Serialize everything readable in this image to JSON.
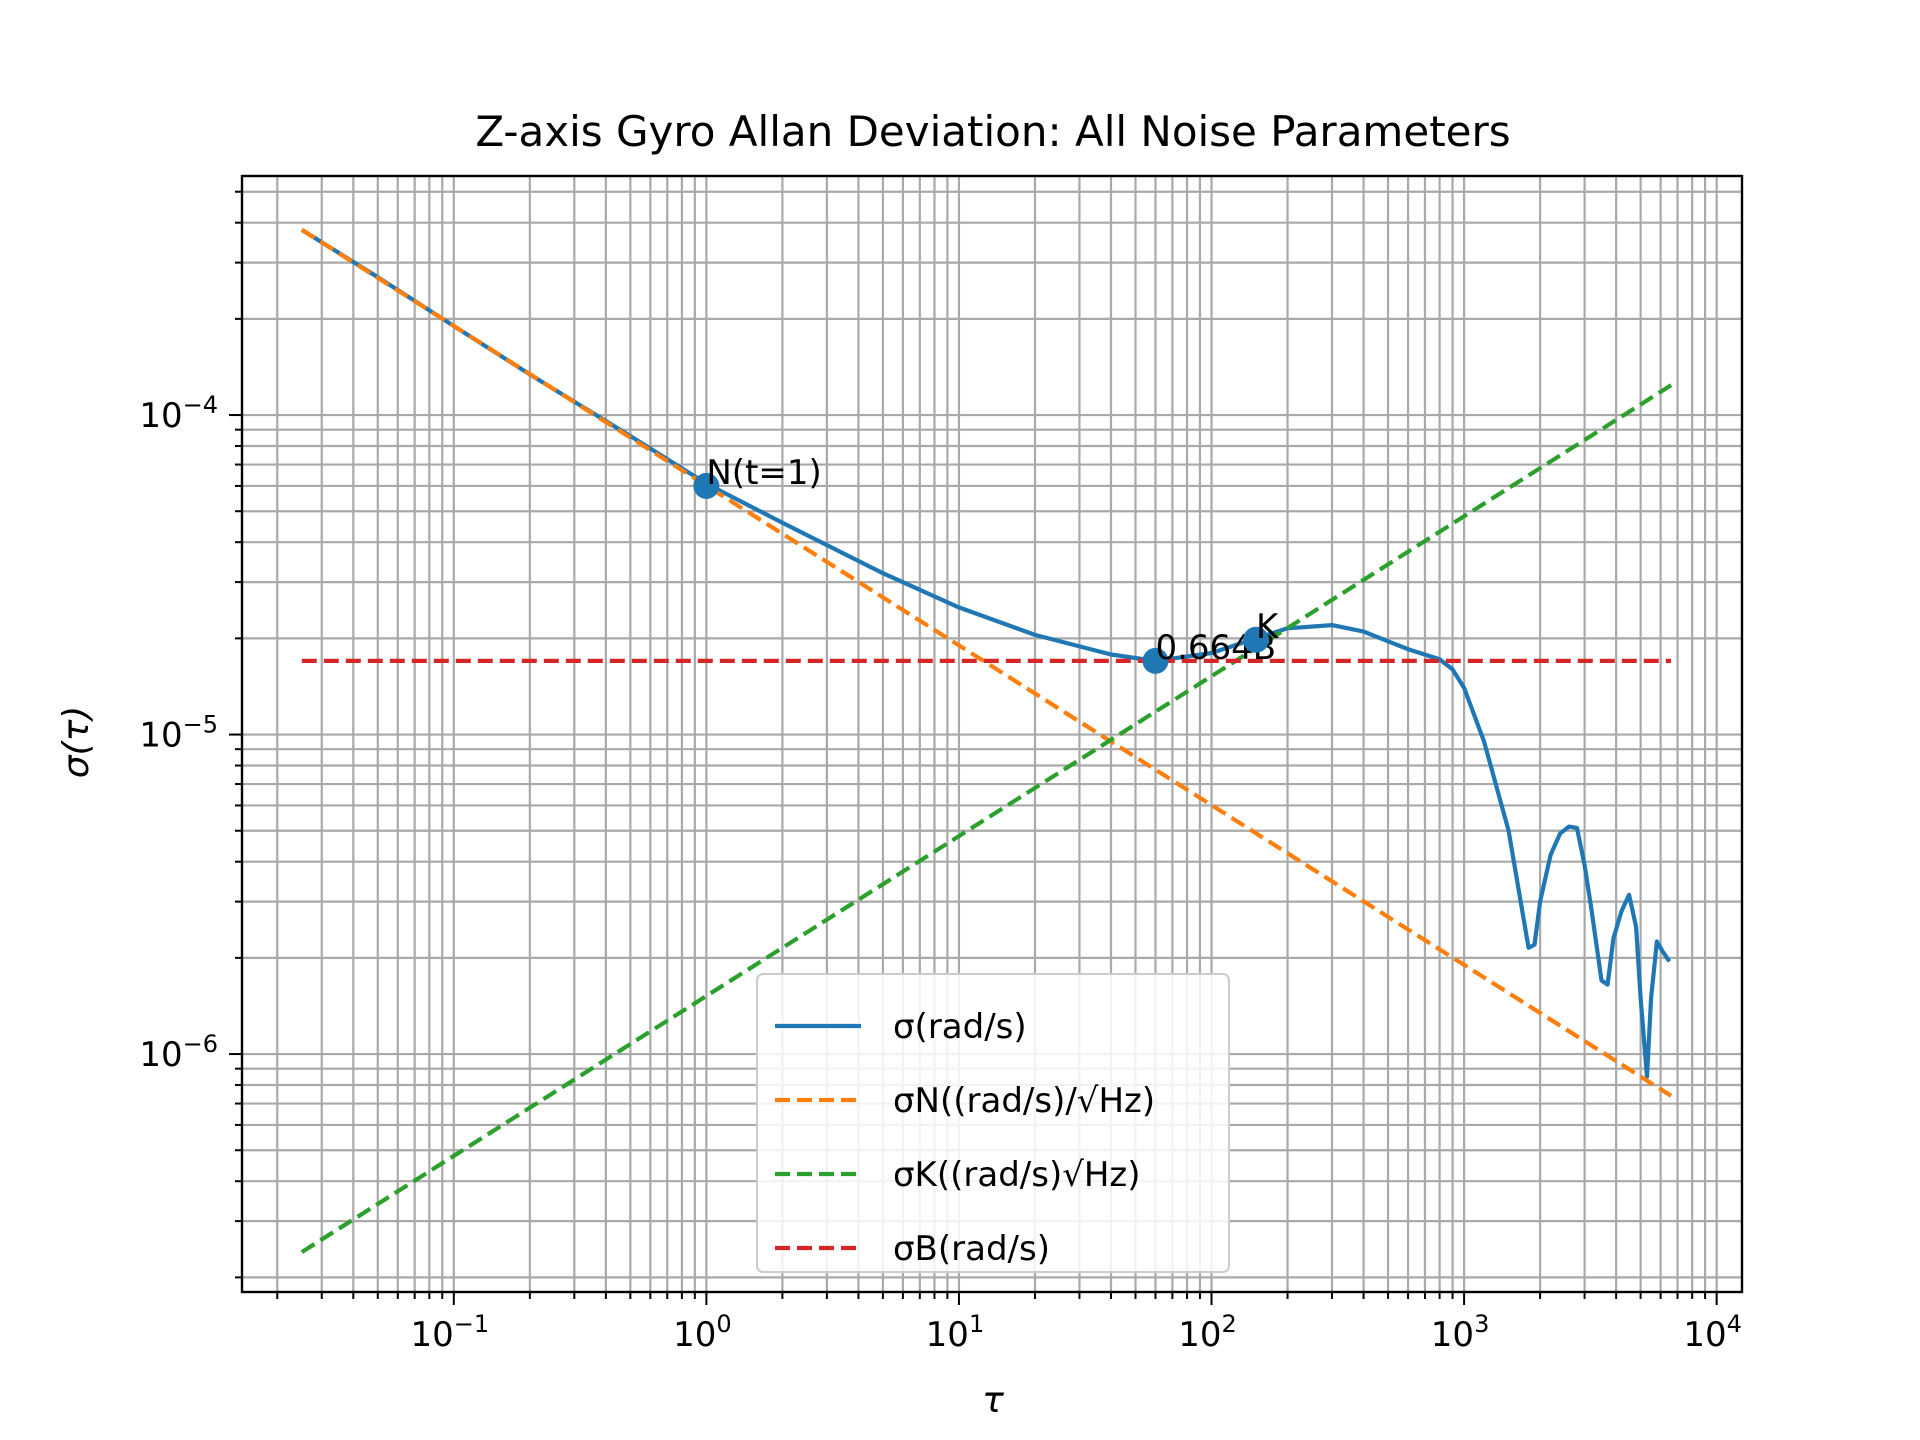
{
  "chart_data": {
    "type": "line",
    "title": "Z-axis Gyro Allan Deviation: All Noise Parameters",
    "xlabel": "τ",
    "ylabel": "σ(τ)",
    "x_scale": "log",
    "y_scale": "log",
    "xlim": [
      0.0145,
      12600
    ],
    "ylim": [
      1.8e-07,
      0.00056
    ],
    "grid": "both major and minor",
    "x_ticks": [
      {
        "value": 0.1,
        "base": "10",
        "exp": "−1"
      },
      {
        "value": 1,
        "base": "10",
        "exp": "0"
      },
      {
        "value": 10,
        "base": "10",
        "exp": "1"
      },
      {
        "value": 100,
        "base": "10",
        "exp": "2"
      },
      {
        "value": 1000,
        "base": "10",
        "exp": "3"
      },
      {
        "value": 10000,
        "base": "10",
        "exp": "4"
      }
    ],
    "y_ticks": [
      {
        "value": 1e-06,
        "base": "10",
        "exp": "−6"
      },
      {
        "value": 1e-05,
        "base": "10",
        "exp": "−5"
      },
      {
        "value": 0.0001,
        "base": "10",
        "exp": "−4"
      }
    ],
    "legend": {
      "position": "lower center",
      "entries": [
        {
          "label": "σ(rad/s)",
          "color": "#1f77b4",
          "style": "solid"
        },
        {
          "label": "σN((rad/s)/√Hz)",
          "color": "#ff7f0e",
          "style": "dashed"
        },
        {
          "label": "σK((rad/s)√Hz)",
          "color": "#2ca02c",
          "style": "dashed"
        },
        {
          "label": "σB(rad/s)",
          "color": "#d62728",
          "style": "dashed"
        }
      ]
    },
    "series": [
      {
        "name": "σ(rad/s)",
        "color": "#1f77b4",
        "style": "solid",
        "x": [
          0.025,
          0.05,
          0.1,
          0.2,
          0.5,
          1,
          2,
          5,
          10,
          20,
          40,
          60,
          100,
          150,
          200,
          300,
          400,
          600,
          800,
          900,
          1000,
          1200,
          1500,
          1700,
          1800,
          1900,
          2000,
          2200,
          2400,
          2600,
          2800,
          3000,
          3200,
          3500,
          3700,
          3900,
          4200,
          4500,
          4800,
          5000,
          5300,
          5500,
          5800,
          6100,
          6500
        ],
        "y": [
          0.00038,
          0.00027,
          0.00019,
          0.000134,
          8.6e-05,
          6.1e-05,
          4.6e-05,
          3.2e-05,
          2.5e-05,
          2.05e-05,
          1.78e-05,
          1.7e-05,
          1.8e-05,
          2e-05,
          2.15e-05,
          2.2e-05,
          2.1e-05,
          1.85e-05,
          1.72e-05,
          1.6e-05,
          1.4e-05,
          9.5e-06,
          5e-06,
          2.8e-06,
          2.15e-06,
          2.2e-06,
          3e-06,
          4.2e-06,
          4.9e-06,
          5.15e-06,
          5.1e-06,
          3.9e-06,
          2.8e-06,
          1.7e-06,
          1.65e-06,
          2.3e-06,
          2.8e-06,
          3.15e-06,
          2.5e-06,
          1.5e-06,
          8.5e-07,
          1.5e-06,
          2.25e-06,
          2.1e-06,
          1.95e-06
        ]
      },
      {
        "name": "σN((rad/s)/√Hz)",
        "color": "#ff7f0e",
        "style": "dashed",
        "x": [
          0.025,
          6600
        ],
        "y": [
          0.00038,
          7.4e-07
        ]
      },
      {
        "name": "σK((rad/s)√Hz)",
        "color": "#2ca02c",
        "style": "dashed",
        "x": [
          0.025,
          6600
        ],
        "y": [
          2.4e-07,
          0.000124
        ]
      },
      {
        "name": "σB(rad/s)",
        "color": "#d62728",
        "style": "dashed",
        "x": [
          0.025,
          6600
        ],
        "y": [
          1.7e-05,
          1.7e-05
        ]
      }
    ],
    "markers": [
      {
        "x": 1,
        "y": 6e-05,
        "label": "N(t=1)"
      },
      {
        "x": 60,
        "y": 1.7e-05,
        "label": "0.664B"
      },
      {
        "x": 150,
        "y": 1.98e-05,
        "label": "K"
      }
    ]
  }
}
